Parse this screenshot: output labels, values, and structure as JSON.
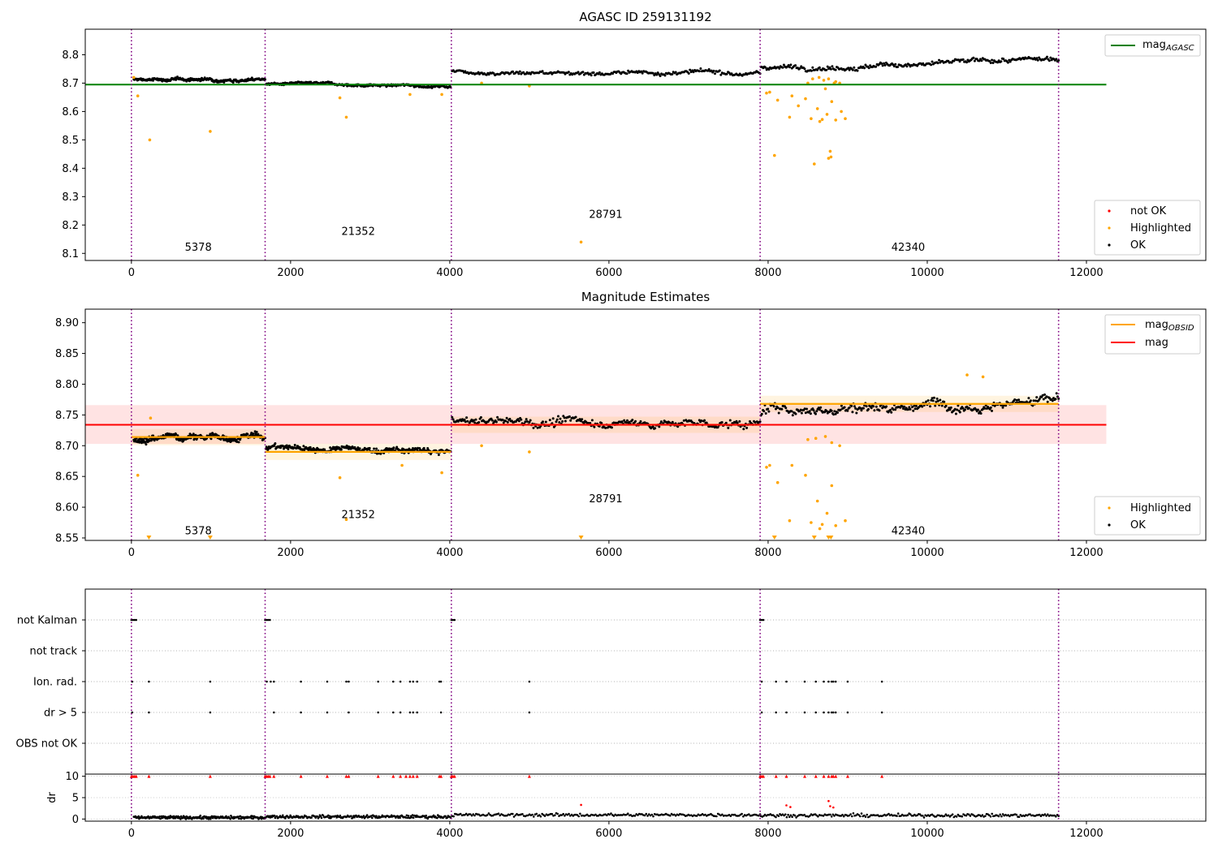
{
  "chart_data": [
    {
      "id": "p1",
      "type": "scatter",
      "title": "AGASC ID 259131192",
      "xlim": [
        -580,
        13500
      ],
      "ylim": [
        8.075,
        8.89
      ],
      "xticks": [
        0,
        2000,
        4000,
        6000,
        8000,
        10000,
        12000
      ],
      "xtick_labels": [
        "0",
        "2000",
        "4000",
        "6000",
        "8000",
        "10000",
        "12000"
      ],
      "yticks": [
        8.1,
        8.2,
        8.3,
        8.4,
        8.5,
        8.6,
        8.7,
        8.8
      ],
      "ytick_labels": [
        "8.1",
        "8.2",
        "8.3",
        "8.4",
        "8.5",
        "8.6",
        "8.7",
        "8.8"
      ],
      "boundaries": [
        0,
        1680,
        4020,
        7900,
        11650
      ],
      "obsid_labels": [
        {
          "text": "5378",
          "x": 840,
          "y": 8.11
        },
        {
          "text": "21352",
          "x": 2850,
          "y": 8.165
        },
        {
          "text": "28791",
          "x": 5960,
          "y": 8.225
        },
        {
          "text": "42340",
          "x": 9760,
          "y": 8.11
        }
      ],
      "hline": {
        "name": "mag_AGASC",
        "y": 8.695,
        "x": [
          -580,
          12250
        ],
        "color": "#008000"
      },
      "segments": [
        {
          "x0": 30,
          "x1": 1680,
          "level": 8.713,
          "noise": 0.007,
          "trend": 0.004
        },
        {
          "x0": 1690,
          "x1": 4010,
          "level": 8.693,
          "noise": 0.006,
          "trend": -0.008
        },
        {
          "x0": 4030,
          "x1": 7900,
          "level": 8.738,
          "noise": 0.009,
          "trend": -0.006
        },
        {
          "x0": 7910,
          "x1": 11650,
          "level": 8.768,
          "noise": 0.011,
          "trend": 0.022
        }
      ],
      "highlighted": [
        [
          30,
          8.72
        ],
        [
          80,
          8.655
        ],
        [
          230,
          8.5
        ],
        [
          990,
          8.53
        ],
        [
          2620,
          8.648
        ],
        [
          2700,
          8.58
        ],
        [
          3500,
          8.66
        ],
        [
          3900,
          8.66
        ],
        [
          4400,
          8.7
        ],
        [
          5000,
          8.69
        ],
        [
          5650,
          8.14
        ],
        [
          7980,
          8.665
        ],
        [
          8020,
          8.668
        ],
        [
          8080,
          8.445
        ],
        [
          8120,
          8.64
        ],
        [
          8270,
          8.58
        ],
        [
          8300,
          8.655
        ],
        [
          8380,
          8.62
        ],
        [
          8470,
          8.645
        ],
        [
          8540,
          8.575
        ],
        [
          8580,
          8.415
        ],
        [
          8620,
          8.61
        ],
        [
          8650,
          8.565
        ],
        [
          8680,
          8.572
        ],
        [
          8720,
          8.68
        ],
        [
          8740,
          8.59
        ],
        [
          8760,
          8.435
        ],
        [
          8780,
          8.46
        ],
        [
          8790,
          8.44
        ],
        [
          8800,
          8.635
        ],
        [
          8830,
          8.7
        ],
        [
          8850,
          8.57
        ],
        [
          8920,
          8.6
        ],
        [
          8970,
          8.575
        ],
        [
          8500,
          8.7
        ],
        [
          8560,
          8.715
        ],
        [
          8640,
          8.72
        ],
        [
          8700,
          8.71
        ],
        [
          8760,
          8.715
        ],
        [
          8850,
          8.705
        ],
        [
          8900,
          8.7
        ]
      ],
      "legend": [
        {
          "label": "mag",
          "sub": "AGASC",
          "kind": "line",
          "color": "#008000"
        }
      ],
      "legend2": [
        {
          "label": "not OK",
          "kind": "dot",
          "color": "#ff0000"
        },
        {
          "label": "Highlighted",
          "kind": "dot",
          "color": "#ffa500"
        },
        {
          "label": "OK",
          "kind": "dot",
          "color": "#000000"
        }
      ]
    },
    {
      "id": "p2",
      "type": "scatter",
      "title": "Magnitude Estimates",
      "xlim": [
        -580,
        13500
      ],
      "ylim": [
        8.546,
        8.922
      ],
      "xticks": [
        0,
        2000,
        4000,
        6000,
        8000,
        10000,
        12000
      ],
      "xtick_labels": [
        "0",
        "2000",
        "4000",
        "6000",
        "8000",
        "10000",
        "12000"
      ],
      "yticks": [
        8.55,
        8.6,
        8.65,
        8.7,
        8.75,
        8.8,
        8.85,
        8.9
      ],
      "ytick_labels": [
        "8.55",
        "8.60",
        "8.65",
        "8.70",
        "8.75",
        "8.80",
        "8.85",
        "8.90"
      ],
      "boundaries": [
        0,
        1680,
        4020,
        7900,
        11650
      ],
      "obsid_labels": [
        {
          "text": "5378",
          "x": 840,
          "y": 8.556
        },
        {
          "text": "21352",
          "x": 2850,
          "y": 8.582
        },
        {
          "text": "28791",
          "x": 5960,
          "y": 8.608
        },
        {
          "text": "42340",
          "x": 9760,
          "y": 8.556
        }
      ],
      "mag": {
        "y": 8.734,
        "band": [
          8.703,
          8.766
        ],
        "x": [
          -580,
          12250
        ],
        "color": "#ff0000",
        "band_color": "#ffb0b0"
      },
      "obsid_mags": [
        {
          "x0": 0,
          "x1": 1680,
          "y": 8.714
        },
        {
          "x0": 1680,
          "x1": 4020,
          "y": 8.69
        },
        {
          "x0": 4020,
          "x1": 7900,
          "y": 8.734
        },
        {
          "x0": 7900,
          "x1": 11650,
          "y": 8.768
        }
      ],
      "segments": [
        {
          "x0": 30,
          "x1": 1680,
          "level": 8.713,
          "noise": 0.007,
          "trend": 0.004
        },
        {
          "x0": 1690,
          "x1": 4010,
          "level": 8.693,
          "noise": 0.006,
          "trend": -0.008
        },
        {
          "x0": 4030,
          "x1": 7900,
          "level": 8.738,
          "noise": 0.009,
          "trend": -0.006
        },
        {
          "x0": 7910,
          "x1": 11650,
          "level": 8.768,
          "noise": 0.011,
          "trend": 0.022
        }
      ],
      "highlighted": [
        [
          80,
          8.652
        ],
        [
          240,
          8.745
        ],
        [
          2620,
          8.648
        ],
        [
          2700,
          8.58
        ],
        [
          3400,
          8.668
        ],
        [
          3900,
          8.656
        ],
        [
          4400,
          8.7
        ],
        [
          5000,
          8.69
        ],
        [
          7980,
          8.665
        ],
        [
          8020,
          8.668
        ],
        [
          8120,
          8.64
        ],
        [
          8270,
          8.578
        ],
        [
          8300,
          8.668
        ],
        [
          8470,
          8.652
        ],
        [
          8540,
          8.575
        ],
        [
          8620,
          8.61
        ],
        [
          8650,
          8.565
        ],
        [
          8680,
          8.572
        ],
        [
          8740,
          8.59
        ],
        [
          8800,
          8.635
        ],
        [
          8850,
          8.57
        ],
        [
          8970,
          8.578
        ],
        [
          8500,
          8.71
        ],
        [
          8600,
          8.712
        ],
        [
          8720,
          8.715
        ],
        [
          8800,
          8.705
        ],
        [
          8900,
          8.7
        ],
        [
          10500,
          8.815
        ],
        [
          10700,
          8.812
        ]
      ],
      "below": [
        220,
        990,
        5650,
        8080,
        8580,
        8760,
        8790
      ],
      "legend": [
        {
          "label": "mag",
          "sub": "OBSID",
          "kind": "line",
          "color": "#ffa500"
        },
        {
          "label": "mag",
          "sub": "",
          "kind": "line",
          "color": "#ff0000"
        }
      ],
      "legend2": [
        {
          "label": "Highlighted",
          "kind": "dot",
          "color": "#ffa500"
        },
        {
          "label": "OK",
          "kind": "dot",
          "color": "#000000"
        }
      ]
    },
    {
      "id": "p3",
      "type": "scatter",
      "title": "",
      "xlim": [
        -580,
        13500
      ],
      "categories": [
        "not Kalman",
        "not track",
        "Ion. rad.",
        "dr > 5",
        "OBS not OK"
      ],
      "boundaries": [
        0,
        1680,
        4020,
        7900,
        11650
      ],
      "not_kalman_x": [
        0,
        20,
        40,
        60,
        1680,
        1700,
        1720,
        1740,
        4020,
        4040,
        4060,
        7900,
        7920,
        7940
      ],
      "ion_rad_x": [
        10,
        220,
        990,
        1700,
        1750,
        1790,
        2130,
        2460,
        2700,
        2730,
        3100,
        3290,
        3380,
        3500,
        3540,
        3590,
        3870,
        3890,
        5000,
        7920,
        8100,
        8230,
        8460,
        8600,
        8700,
        8760,
        8800,
        8820,
        8850,
        9000,
        9430
      ],
      "dr5_x": [
        10,
        220,
        990,
        1790,
        2130,
        2460,
        2730,
        3100,
        3290,
        3380,
        3500,
        3540,
        3590,
        3890,
        5000,
        7920,
        8100,
        8230,
        8460,
        8600,
        8700,
        8760,
        8800,
        8820,
        8850,
        9000,
        9430
      ]
    },
    {
      "id": "p4",
      "type": "scatter",
      "title": "",
      "ylabel": "dr",
      "xlim": [
        -580,
        13500
      ],
      "ylim": [
        -0.5,
        10.5
      ],
      "xticks": [
        0,
        2000,
        4000,
        6000,
        8000,
        10000,
        12000
      ],
      "xtick_labels": [
        "0",
        "2000",
        "4000",
        "6000",
        "8000",
        "10000",
        "12000"
      ],
      "yticks": [
        0,
        5,
        10
      ],
      "ytick_labels": [
        "0",
        "5",
        "10"
      ],
      "boundaries": [
        0,
        1680,
        4020,
        7900,
        11650
      ],
      "red_top_x": [
        0,
        20,
        40,
        60,
        220,
        990,
        1680,
        1700,
        1720,
        1740,
        1790,
        2130,
        2460,
        2700,
        2730,
        3100,
        3290,
        3380,
        3450,
        3500,
        3540,
        3590,
        3870,
        3890,
        4020,
        4040,
        4060,
        5000,
        7900,
        7920,
        7940,
        8100,
        8230,
        8460,
        8600,
        8700,
        8760,
        8800,
        8820,
        8850,
        9000,
        9430
      ],
      "red_low": [
        [
          5650,
          3.3
        ],
        [
          8230,
          3.2
        ],
        [
          8280,
          2.8
        ],
        [
          8760,
          4.2
        ],
        [
          8780,
          3.0
        ],
        [
          8820,
          2.7
        ]
      ],
      "dr_segments": [
        {
          "x0": 30,
          "x1": 1680,
          "level": 0.35
        },
        {
          "x0": 1690,
          "x1": 4010,
          "level": 0.55
        },
        {
          "x0": 4030,
          "x1": 7900,
          "level": 0.95
        },
        {
          "x0": 7910,
          "x1": 11650,
          "level": 0.85
        }
      ]
    }
  ]
}
